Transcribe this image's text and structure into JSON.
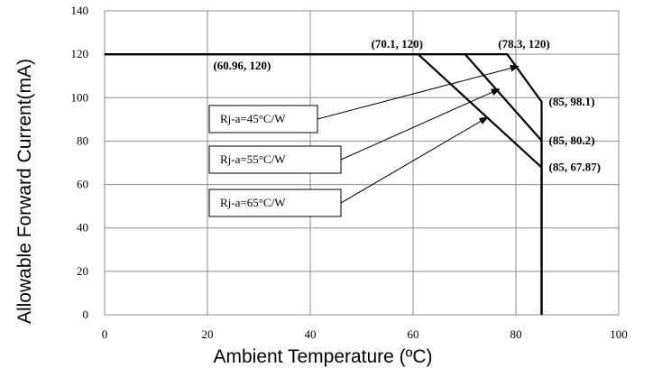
{
  "chart_data": {
    "type": "line",
    "title": "",
    "xlabel": "Ambient Temperature (ºC)",
    "ylabel": "Allowable  Forward Current(mA)",
    "xlim": [
      0,
      100
    ],
    "ylim": [
      0,
      140
    ],
    "xticks": [
      0,
      20,
      40,
      60,
      80,
      100
    ],
    "yticks": [
      0,
      20,
      40,
      60,
      80,
      100,
      120,
      140
    ],
    "grid": true,
    "series": [
      {
        "name": "Rj-a=45°C/W",
        "points": [
          [
            0,
            120
          ],
          [
            78.3,
            120
          ],
          [
            85,
            98.1
          ],
          [
            85,
            0
          ]
        ],
        "annotation_points": [
          [
            78.3,
            120
          ],
          [
            85,
            98.1
          ]
        ]
      },
      {
        "name": "Rj-a=55°C/W",
        "points": [
          [
            0,
            120
          ],
          [
            70.1,
            120
          ],
          [
            85,
            80.2
          ],
          [
            85,
            0
          ]
        ],
        "annotation_points": [
          [
            70.1,
            120
          ],
          [
            85,
            80.2
          ]
        ]
      },
      {
        "name": "Rj-a=65°C/W",
        "points": [
          [
            0,
            120
          ],
          [
            60.96,
            120
          ],
          [
            85,
            67.87
          ],
          [
            85,
            0
          ]
        ],
        "annotation_points": [
          [
            60.96,
            120
          ],
          [
            85,
            67.87
          ]
        ]
      }
    ],
    "point_labels": [
      {
        "text": "(70.1, 120)",
        "x": 70.1,
        "y": 120
      },
      {
        "text": "(78.3, 120)",
        "x": 78.3,
        "y": 120
      },
      {
        "text": "(60.96, 120)",
        "x": 60.96,
        "y": 120
      },
      {
        "text": "(85, 98.1)",
        "x": 85,
        "y": 98.1
      },
      {
        "text": "(85, 80.2)",
        "x": 85,
        "y": 80.2
      },
      {
        "text": "(85, 67.87)",
        "x": 85,
        "y": 67.87
      }
    ],
    "legend_boxes": [
      {
        "text": "Rj-a=45°C/W",
        "target_x": 80.5,
        "target_y": 114.5
      },
      {
        "text": "Rj-a=55°C/W",
        "target_x": 76.8,
        "target_y": 104
      },
      {
        "text": "Rj-a=65°C/W",
        "target_x": 74.5,
        "target_y": 91
      }
    ]
  }
}
